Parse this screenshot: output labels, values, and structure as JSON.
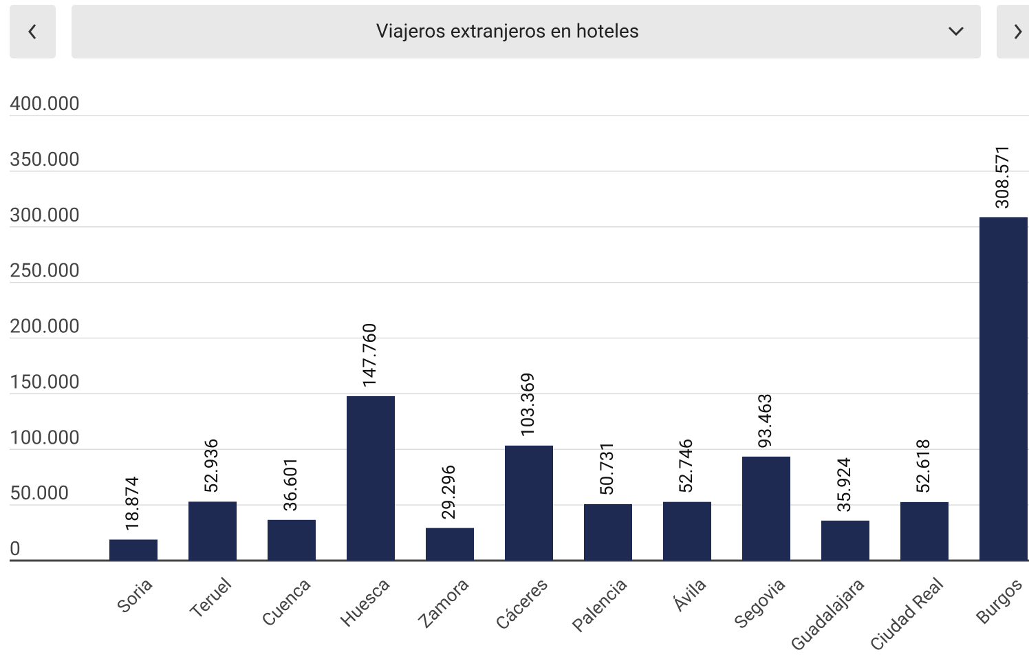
{
  "chart_data": {
    "type": "bar",
    "title": "Viajeros extranjeros en hoteles",
    "categories": [
      "Soria",
      "Teruel",
      "Cuenca",
      "Huesca",
      "Zamora",
      "Cáceres",
      "Palencia",
      "Ávila",
      "Segovia",
      "Guadalajara",
      "Ciudad Real",
      "Burgos"
    ],
    "values": [
      18874,
      52936,
      36601,
      147760,
      29296,
      103369,
      50731,
      52746,
      93463,
      35924,
      52618,
      308571
    ],
    "value_labels": [
      "18.874",
      "52.936",
      "36.601",
      "147.760",
      "29.296",
      "103.369",
      "50.731",
      "52.746",
      "93.463",
      "35.924",
      "52.618",
      "308.571"
    ],
    "color": "#1f2a52",
    "ylim": [
      0,
      400000
    ],
    "yticks": [
      0,
      {
        "value": 50000,
        "label": "50.000"
      },
      {
        "value": 100000,
        "label": "100.000"
      },
      {
        "value": 150000,
        "label": "150.000"
      },
      {
        "value": 200000,
        "label": "200.000"
      },
      {
        "value": 250000,
        "label": "250.000"
      },
      {
        "value": 300000,
        "label": "300.000"
      },
      {
        "value": 350000,
        "label": "350.000"
      },
      {
        "value": 400000,
        "label": "400.000"
      }
    ],
    "grid": true
  }
}
